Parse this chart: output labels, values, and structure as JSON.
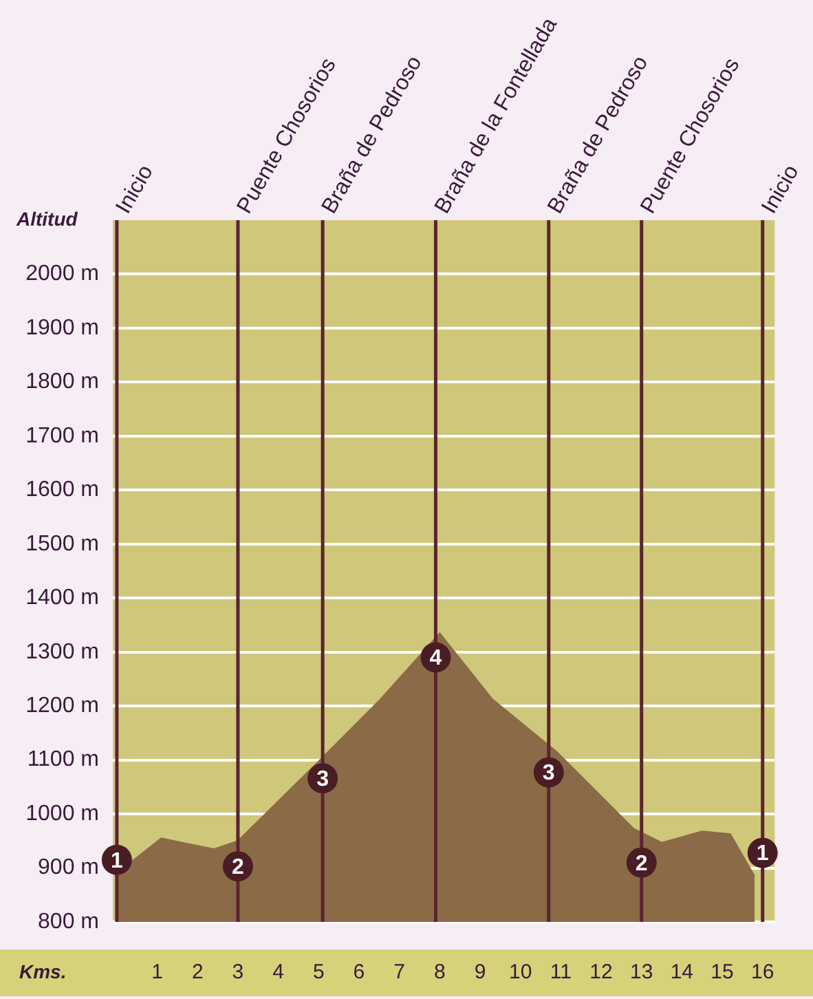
{
  "chart_data": {
    "type": "area",
    "ylabel": "Altitud",
    "xlabel": "Kms.",
    "x": [
      0,
      1.1,
      2.4,
      3.0,
      5.1,
      6.5,
      8.0,
      9.3,
      10.9,
      12.8,
      13.5,
      14.5,
      15.2,
      15.8
    ],
    "series": [
      {
        "color": "#8b6b47",
        "values": [
          890,
          955,
          935,
          950,
          1105,
          1210,
          1335,
          1213,
          1115,
          973,
          947,
          968,
          963,
          885
        ]
      }
    ],
    "xlim": [
      -0.1,
      16.3
    ],
    "xticks": [
      1,
      2,
      3,
      4,
      5,
      6,
      7,
      8,
      9,
      10,
      11,
      12,
      13,
      14,
      15,
      16
    ],
    "ylim": [
      800,
      2100
    ],
    "yticks": [
      {
        "value": 800,
        "label": "800 m"
      },
      {
        "value": 900,
        "label": "900 m"
      },
      {
        "value": 1000,
        "label": "1000 m"
      },
      {
        "value": 1100,
        "label": "1100 m"
      },
      {
        "value": 1200,
        "label": "1200 m"
      },
      {
        "value": 1300,
        "label": "1300 m"
      },
      {
        "value": 1400,
        "label": "1400 m"
      },
      {
        "value": 1500,
        "label": "1500 m"
      },
      {
        "value": 1600,
        "label": "1600 m"
      },
      {
        "value": 1700,
        "label": "1700 m"
      },
      {
        "value": 1800,
        "label": "1800 m"
      },
      {
        "value": 1900,
        "label": "1900 m"
      },
      {
        "value": 2000,
        "label": "2000 m"
      }
    ],
    "grid": "y",
    "ref_lines": [
      {
        "axis": "x",
        "value": 0,
        "label": "Inicio",
        "color": "#5b2430"
      },
      {
        "axis": "x",
        "value": 3.0,
        "label": "Puente Chosorios",
        "color": "#5b2430"
      },
      {
        "axis": "x",
        "value": 5.1,
        "label": "Braña de Pedroso",
        "color": "#5b2430"
      },
      {
        "axis": "x",
        "value": 7.9,
        "label": "Braña de la Fontellada",
        "color": "#5b2430"
      },
      {
        "axis": "x",
        "value": 10.7,
        "label": "Braña de Pedroso",
        "color": "#5b2430"
      },
      {
        "axis": "x",
        "value": 13.0,
        "label": "Puente Chosorios",
        "color": "#5b2430"
      },
      {
        "axis": "x",
        "value": 16,
        "label": "Inicio",
        "color": "#5b2430"
      }
    ],
    "annotations": [
      {
        "text": "1",
        "x": 0,
        "y": 915
      },
      {
        "text": "2",
        "x": 3.0,
        "y": 903
      },
      {
        "text": "3",
        "x": 5.1,
        "y": 1066
      },
      {
        "text": "4",
        "x": 7.9,
        "y": 1290
      },
      {
        "text": "3",
        "x": 10.7,
        "y": 1077
      },
      {
        "text": "2",
        "x": 13.0,
        "y": 910
      },
      {
        "text": "1",
        "x": 16,
        "y": 928
      }
    ]
  }
}
